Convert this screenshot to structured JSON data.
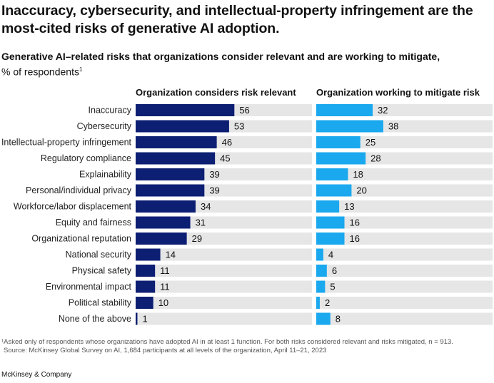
{
  "title": "Inaccuracy, cybersecurity, and intellectual-property infringement are the most-cited risks of generative AI adoption.",
  "subtitle": "Generative AI–related risks that organizations consider relevant and are working to mitigate,",
  "unit_label": "% of respondents",
  "unit_footnote_mark": "1",
  "footnotes": {
    "line1": "¹Asked only of respondents whose organizations have adopted AI in at least 1 function. For both risks considered relevant and risks mitigated, n = 913.",
    "line2": "Source: McKinsey Global Survey on AI, 1,684 participants at all levels of the organization, April 11–21, 2023"
  },
  "brand": "McKinsey & Company",
  "colors": {
    "relevant": "#0d1f73",
    "mitigate": "#1aa8ee",
    "track": "#e6e6e6"
  },
  "chart_data": {
    "type": "bar",
    "orientation": "horizontal",
    "xlim": [
      0,
      100
    ],
    "categories": [
      "Inaccuracy",
      "Cybersecurity",
      "Intellectual-property infringement",
      "Regulatory compliance",
      "Explainability",
      "Personal/individual privacy",
      "Workforce/labor displacement",
      "Equity and fairness",
      "Organizational reputation",
      "National security",
      "Physical safety",
      "Environmental impact",
      "Political stability",
      "None of the above"
    ],
    "series": [
      {
        "name": "Organization considers risk relevant",
        "values": [
          56,
          53,
          46,
          45,
          39,
          39,
          34,
          31,
          29,
          14,
          11,
          11,
          10,
          1
        ]
      },
      {
        "name": "Organization working to mitigate risk",
        "values": [
          32,
          38,
          25,
          28,
          18,
          20,
          13,
          16,
          16,
          4,
          6,
          5,
          2,
          8
        ]
      }
    ]
  }
}
